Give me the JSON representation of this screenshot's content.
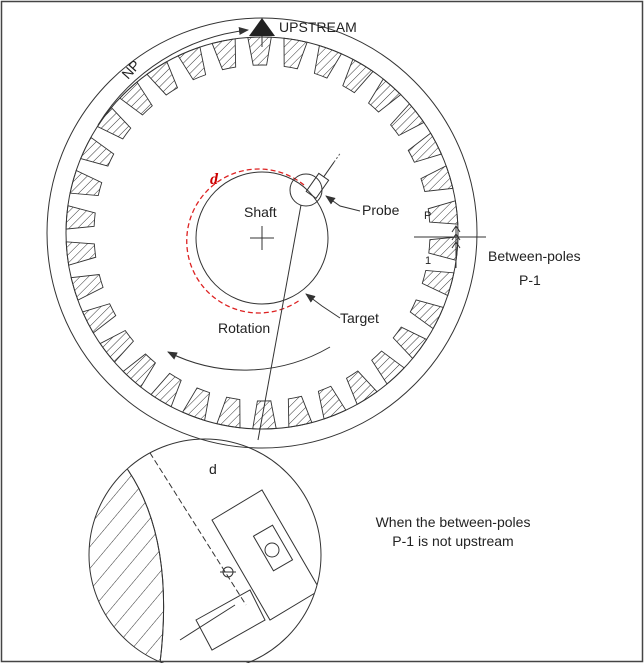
{
  "labels": {
    "upstream": "UPSTREAM",
    "np": "NP",
    "gap": "d",
    "shaft": "Shaft",
    "probe": "Probe",
    "pole_p": "P",
    "pole_1": "1",
    "between_poles": "Between-poles",
    "between_poles_id": "P-1",
    "target": "Target",
    "rotation": "Rotation",
    "detail_gap": "d"
  },
  "note": {
    "line1": "When the between-poles",
    "line2": "P-1 is not upstream"
  }
}
